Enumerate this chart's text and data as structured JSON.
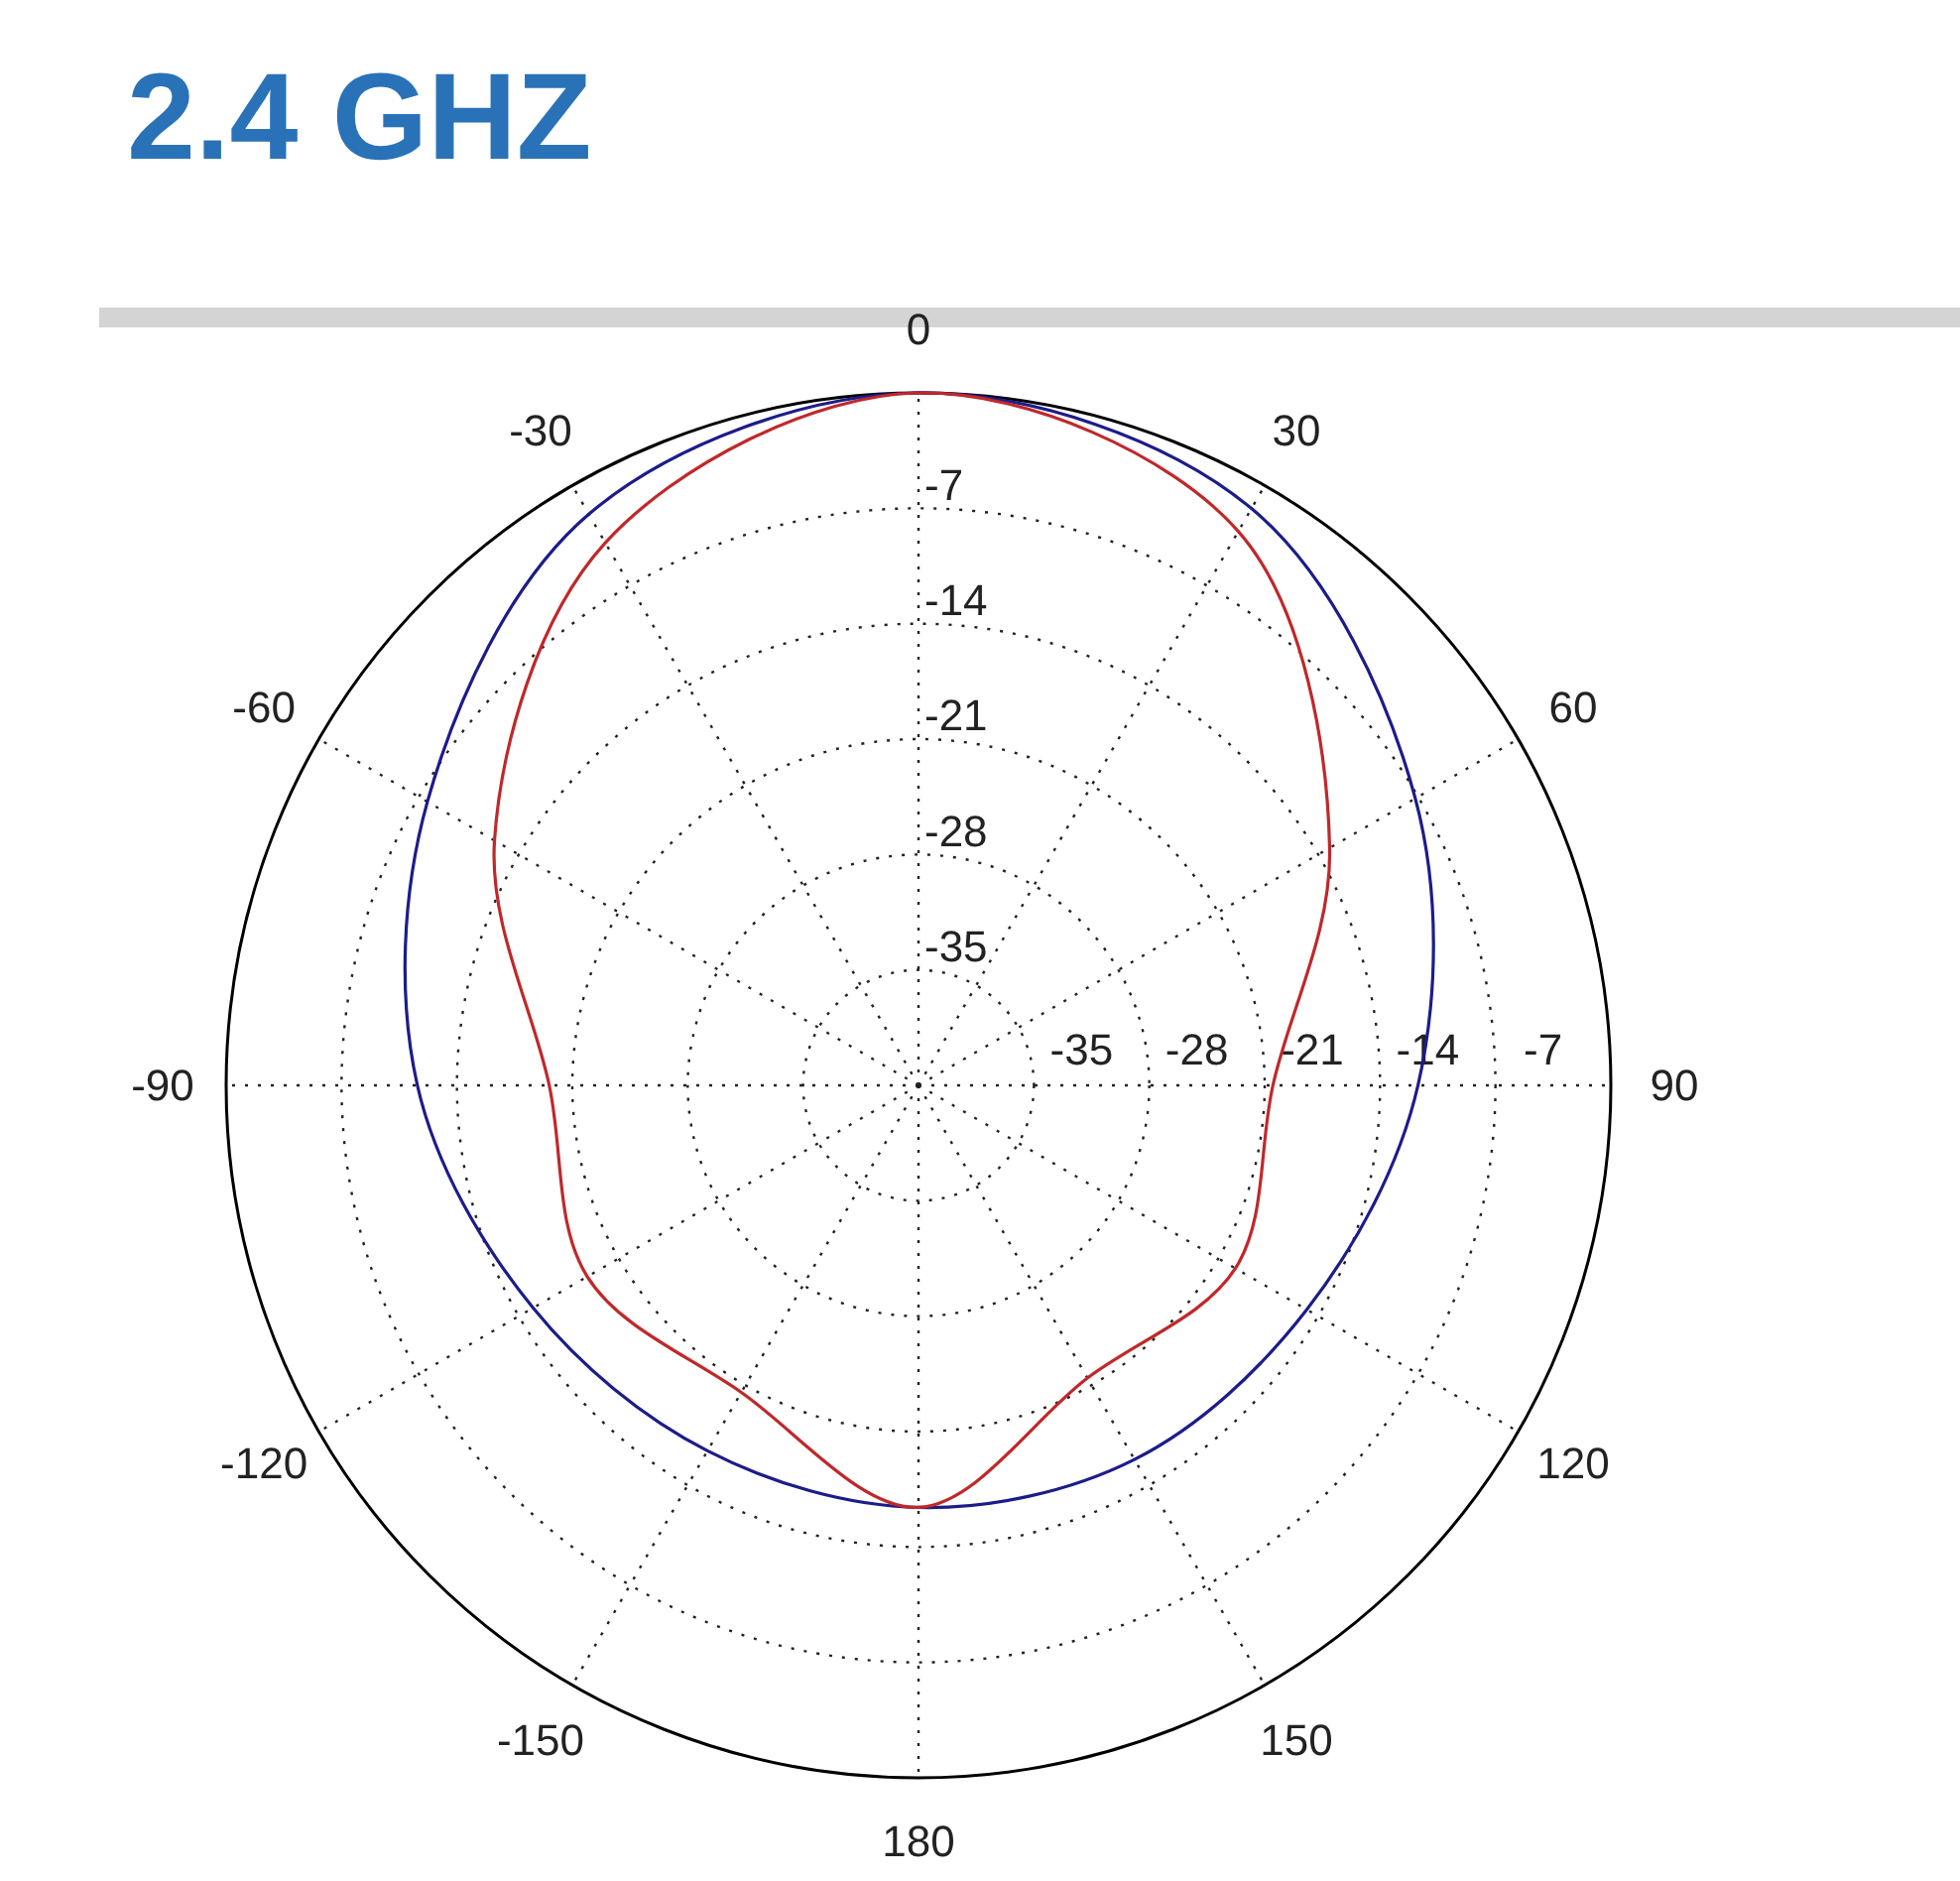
{
  "chart_data": {
    "type": "radar",
    "title": "2.4 GHZ",
    "categories": [
      "0",
      "30",
      "60",
      "90",
      "120",
      "150",
      "180",
      "-150",
      "-120",
      "-90",
      "-60",
      "-30"
    ],
    "ylim": [
      -42,
      0
    ],
    "yticks": [
      -35,
      -28,
      -21,
      -14,
      -7
    ],
    "grid": true,
    "annotations": [
      "-35",
      "-28",
      "-21",
      "-14",
      "-7"
    ],
    "series": [
      {
        "color": "#1c1c8a",
        "values": [
          0,
          -1.6,
          -7.2,
          -11.7,
          -14.8,
          -15.8,
          -16.4,
          -16.4,
          -15.0,
          -11.6,
          -7.6,
          -2.0
        ]
      },
      {
        "color": "#c0282a",
        "values": [
          0,
          -3.2,
          -13.2,
          -20.5,
          -19.8,
          -21.5,
          -16.4,
          -20.5,
          -18.8,
          -19.6,
          -12.3,
          -4.0
        ]
      }
    ]
  }
}
